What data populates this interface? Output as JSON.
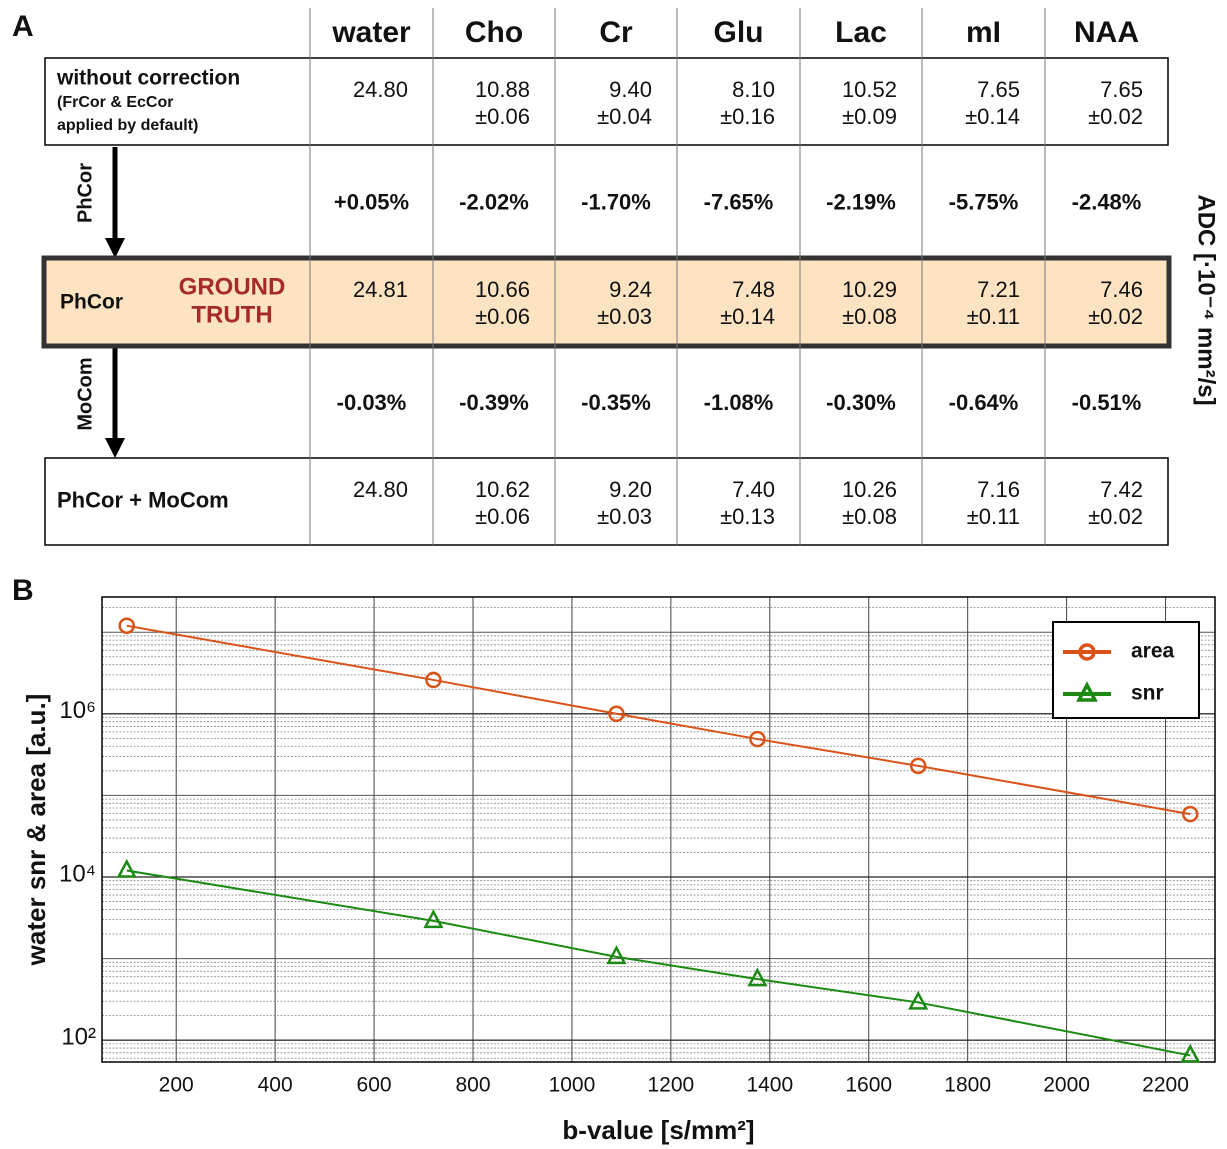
{
  "panel_labels": [
    "A",
    "B"
  ],
  "table": {
    "columns": [
      "water",
      "Cho",
      "Cr",
      "Glu",
      "Lac",
      "mI",
      "NAA"
    ],
    "side_label": "ADC [·10⁻⁴ mm²/s]",
    "rows": [
      {
        "label": [
          "without correction",
          "(FrCor & EcCor",
          "applied by default)"
        ],
        "cells": [
          [
            "24.80"
          ],
          [
            "10.88",
            "±0.06"
          ],
          [
            "9.40",
            "±0.04"
          ],
          [
            "8.10",
            "±0.16"
          ],
          [
            "10.52",
            "±0.09"
          ],
          [
            "7.65",
            "±0.14"
          ],
          [
            "7.65",
            "±0.02"
          ]
        ]
      },
      {
        "label": [
          "PhCor"
        ],
        "cells": [
          [
            "+0.05%"
          ],
          [
            "-2.02%"
          ],
          [
            "-1.70%"
          ],
          [
            "-7.65%"
          ],
          [
            "-2.19%"
          ],
          [
            "-5.75%"
          ],
          [
            "-2.48%"
          ]
        ]
      },
      {
        "label": [
          "PhCor",
          "GROUND",
          "TRUTH"
        ],
        "cells": [
          [
            "24.81"
          ],
          [
            "10.66",
            "±0.06"
          ],
          [
            "9.24",
            "±0.03"
          ],
          [
            "7.48",
            "±0.14"
          ],
          [
            "10.29",
            "±0.08"
          ],
          [
            "7.21",
            "±0.11"
          ],
          [
            "7.46",
            "±0.02"
          ]
        ]
      },
      {
        "label": [
          "MoCom"
        ],
        "cells": [
          [
            "-0.03%"
          ],
          [
            "-0.39%"
          ],
          [
            "-0.35%"
          ],
          [
            "-1.08%"
          ],
          [
            "-0.30%"
          ],
          [
            "-0.64%"
          ],
          [
            "-0.51%"
          ]
        ]
      },
      {
        "label": [
          "PhCor + MoCom"
        ],
        "cells": [
          [
            "24.80"
          ],
          [
            "10.62",
            "±0.06"
          ],
          [
            "9.20",
            "±0.03"
          ],
          [
            "7.40",
            "±0.13"
          ],
          [
            "10.26",
            "±0.08"
          ],
          [
            "7.16",
            "±0.11"
          ],
          [
            "7.42",
            "±0.02"
          ]
        ]
      }
    ]
  },
  "chart_data": {
    "type": "line",
    "x_label": "b-value [s/mm²]",
    "y_label": "water snr & area [a.u.]",
    "x": [
      100,
      720,
      1090,
      1375,
      1700,
      2250
    ],
    "series": [
      {
        "name": "area",
        "color": "#d95319",
        "marker": "circle",
        "values": [
          12000000,
          2600000,
          1000000,
          490000,
          230000,
          59000
        ]
      },
      {
        "name": "snr",
        "color": "#1a8a12",
        "marker": "triangle",
        "values": [
          12000,
          2900,
          1050,
          560,
          290,
          65
        ]
      }
    ],
    "xlim": [
      50,
      2300
    ],
    "xticks": [
      200,
      400,
      600,
      800,
      1000,
      1200,
      1400,
      1600,
      1800,
      2000,
      2200
    ],
    "ylim": [
      54,
      27000000
    ],
    "yticks": [
      {
        "value": 100,
        "label": "10²"
      },
      {
        "value": 10000,
        "label": "10⁴"
      },
      {
        "value": 1000000,
        "label": "10⁶"
      }
    ],
    "y_scale": "log",
    "grid": true,
    "minor_grid": true,
    "legend": "northeast"
  }
}
